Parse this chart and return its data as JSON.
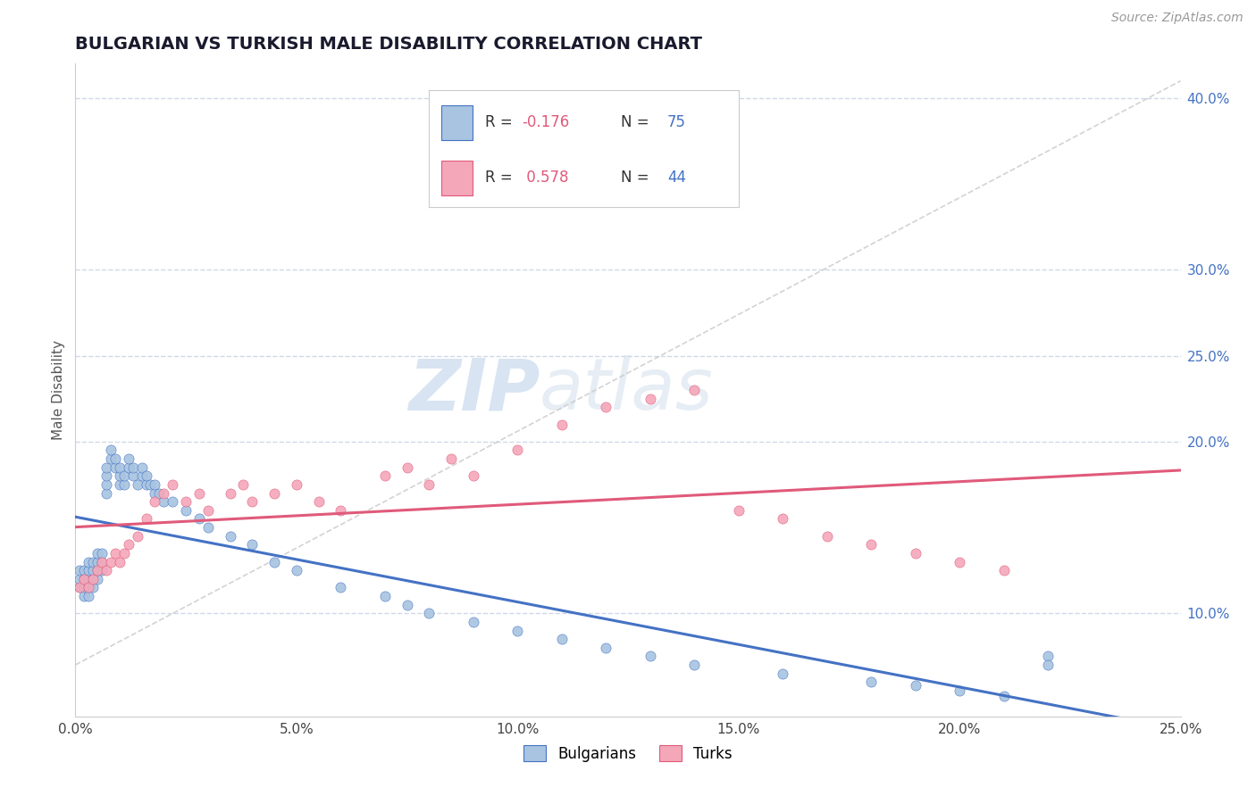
{
  "title": "BULGARIAN VS TURKISH MALE DISABILITY CORRELATION CHART",
  "source": "Source: ZipAtlas.com",
  "ylabel": "Male Disability",
  "xlim": [
    0.0,
    0.25
  ],
  "ylim": [
    0.04,
    0.42
  ],
  "xticks": [
    0.0,
    0.05,
    0.1,
    0.15,
    0.2,
    0.25
  ],
  "yticks_right": [
    0.1,
    0.2,
    0.25,
    0.3,
    0.4
  ],
  "bulgarian_color": "#a8c4e0",
  "turkish_color": "#f4a7b9",
  "trend_bulgarian_color": "#4472c4",
  "trend_turkish_color": "#e05a7a",
  "ref_line_color": "#c8c8c8",
  "grid_color": "#d0d8e8",
  "watermark_zip": "ZIP",
  "watermark_atlas": "atlas",
  "bulgarian_x": [
    0.001,
    0.001,
    0.001,
    0.002,
    0.002,
    0.002,
    0.002,
    0.003,
    0.003,
    0.003,
    0.003,
    0.003,
    0.004,
    0.004,
    0.004,
    0.004,
    0.005,
    0.005,
    0.005,
    0.005,
    0.006,
    0.006,
    0.006,
    0.007,
    0.007,
    0.007,
    0.007,
    0.008,
    0.008,
    0.009,
    0.009,
    0.01,
    0.01,
    0.01,
    0.011,
    0.011,
    0.012,
    0.012,
    0.013,
    0.013,
    0.014,
    0.015,
    0.015,
    0.016,
    0.016,
    0.017,
    0.018,
    0.018,
    0.019,
    0.02,
    0.022,
    0.025,
    0.028,
    0.03,
    0.035,
    0.04,
    0.045,
    0.05,
    0.06,
    0.07,
    0.075,
    0.08,
    0.09,
    0.1,
    0.11,
    0.12,
    0.13,
    0.14,
    0.16,
    0.18,
    0.19,
    0.2,
    0.21,
    0.22,
    0.22
  ],
  "bulgarian_y": [
    0.115,
    0.12,
    0.125,
    0.11,
    0.115,
    0.12,
    0.125,
    0.11,
    0.115,
    0.12,
    0.125,
    0.13,
    0.115,
    0.12,
    0.125,
    0.13,
    0.12,
    0.125,
    0.13,
    0.135,
    0.125,
    0.13,
    0.135,
    0.17,
    0.175,
    0.18,
    0.185,
    0.19,
    0.195,
    0.185,
    0.19,
    0.175,
    0.18,
    0.185,
    0.175,
    0.18,
    0.185,
    0.19,
    0.18,
    0.185,
    0.175,
    0.18,
    0.185,
    0.175,
    0.18,
    0.175,
    0.17,
    0.175,
    0.17,
    0.165,
    0.165,
    0.16,
    0.155,
    0.15,
    0.145,
    0.14,
    0.13,
    0.125,
    0.115,
    0.11,
    0.105,
    0.1,
    0.095,
    0.09,
    0.085,
    0.08,
    0.075,
    0.07,
    0.065,
    0.06,
    0.058,
    0.055,
    0.052,
    0.075,
    0.07
  ],
  "turkish_x": [
    0.001,
    0.002,
    0.003,
    0.004,
    0.005,
    0.006,
    0.007,
    0.008,
    0.009,
    0.01,
    0.011,
    0.012,
    0.014,
    0.016,
    0.018,
    0.02,
    0.022,
    0.025,
    0.028,
    0.03,
    0.035,
    0.038,
    0.04,
    0.045,
    0.05,
    0.055,
    0.06,
    0.07,
    0.075,
    0.08,
    0.085,
    0.09,
    0.1,
    0.11,
    0.12,
    0.13,
    0.14,
    0.15,
    0.16,
    0.17,
    0.18,
    0.19,
    0.2,
    0.21
  ],
  "turkish_y": [
    0.115,
    0.12,
    0.115,
    0.12,
    0.125,
    0.13,
    0.125,
    0.13,
    0.135,
    0.13,
    0.135,
    0.14,
    0.145,
    0.155,
    0.165,
    0.17,
    0.175,
    0.165,
    0.17,
    0.16,
    0.17,
    0.175,
    0.165,
    0.17,
    0.175,
    0.165,
    0.16,
    0.18,
    0.185,
    0.175,
    0.19,
    0.18,
    0.195,
    0.21,
    0.22,
    0.225,
    0.23,
    0.16,
    0.155,
    0.145,
    0.14,
    0.135,
    0.13,
    0.125
  ]
}
